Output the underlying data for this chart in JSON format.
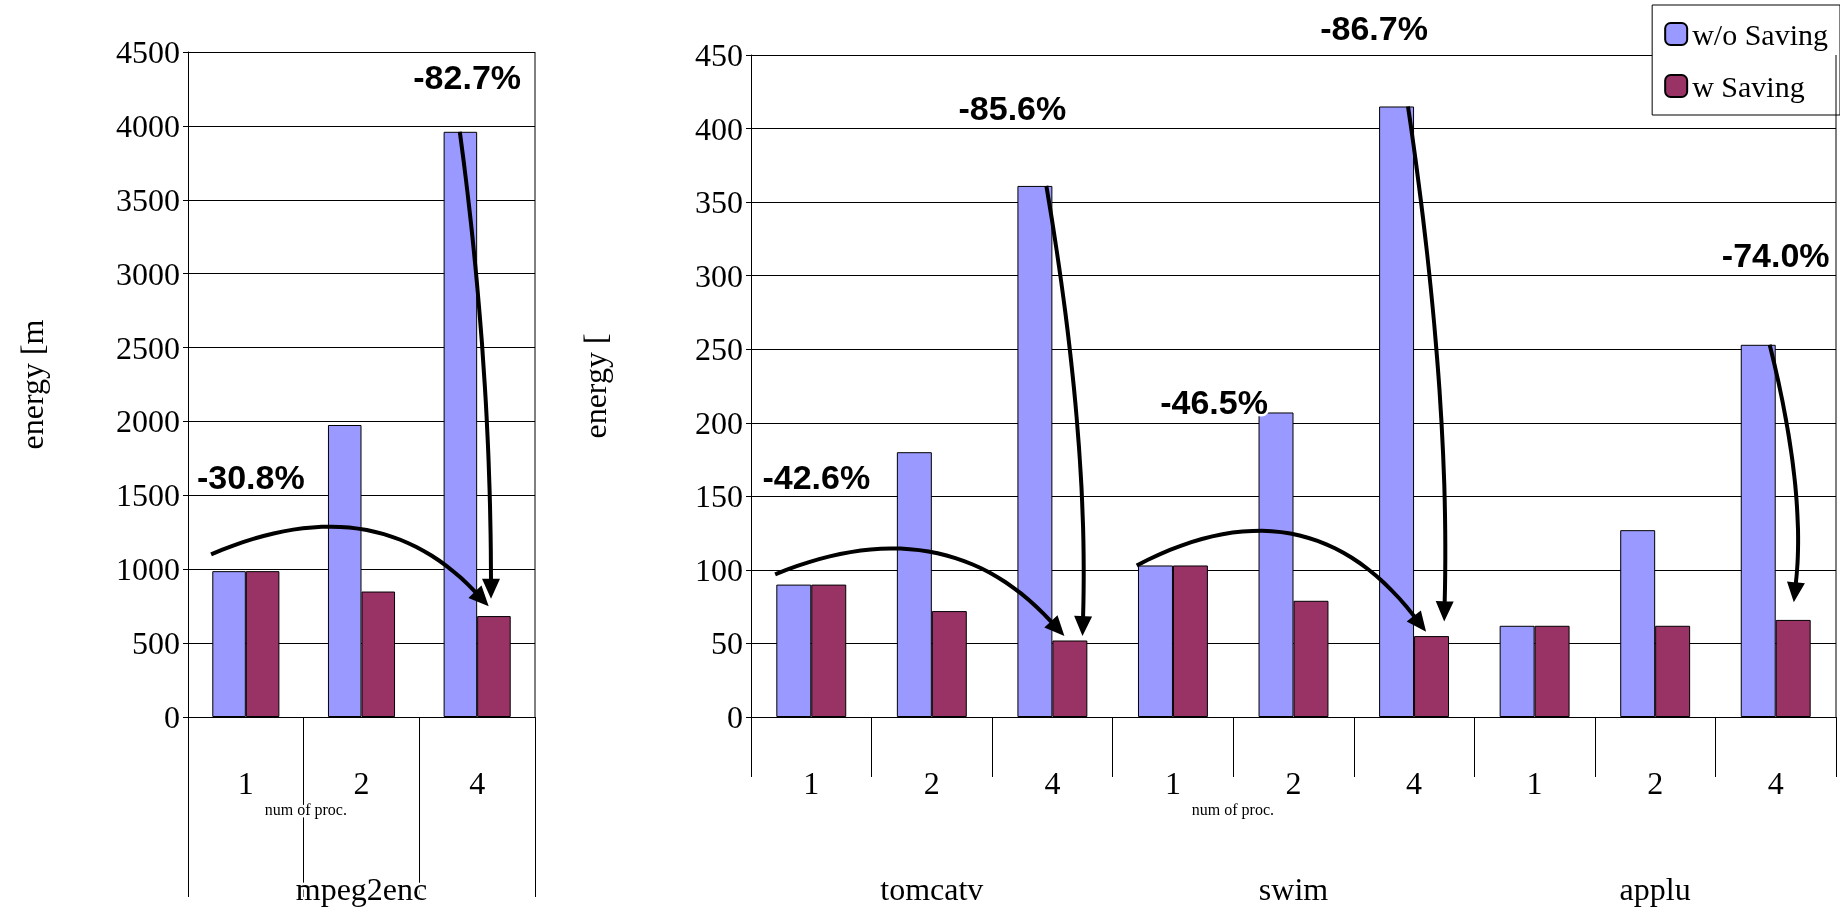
{
  "chart_data": [
    {
      "type": "bar",
      "ylabel": "energy [m",
      "categories": [
        "1",
        "2",
        "4"
      ],
      "series": [
        {
          "color": "#9999ff",
          "values": [
            987,
            1976,
            3960
          ]
        },
        {
          "color": "#993366",
          "values": [
            987,
            849,
            683
          ]
        }
      ],
      "ylim": [
        0,
        4500
      ],
      "yticks": [
        0,
        500,
        1000,
        1500,
        2000,
        2500,
        3000,
        3500,
        4000,
        4500
      ],
      "grid": "y",
      "legend": false,
      "annotations": [
        "-30.8%",
        "-82.7%",
        "num of proc.",
        "mpeg2enc"
      ]
    },
    {
      "type": "bar",
      "ylabel": "energy [",
      "categories": [
        "1",
        "2",
        "4",
        "1",
        "2",
        "4",
        "1",
        "2",
        "4"
      ],
      "series": [
        {
          "name": "w/o Saving",
          "color": "#9999ff",
          "values": [
            90,
            180,
            361,
            103,
            207,
            415,
            62,
            127,
            253
          ]
        },
        {
          "name": "w Saving",
          "color": "#993366",
          "values": [
            90,
            72,
            52,
            103,
            79,
            55,
            62,
            62,
            66
          ]
        }
      ],
      "ylim": [
        0,
        450
      ],
      "yticks": [
        0,
        50,
        100,
        150,
        200,
        250,
        300,
        350,
        400,
        450
      ],
      "grid": "y",
      "legend": "top right",
      "annotations": [
        "-42.6%",
        "-85.6%",
        "-46.5%",
        "-86.7%",
        "-74.0%",
        "num of proc.",
        "tomcatv",
        "swim",
        "applu"
      ]
    }
  ]
}
